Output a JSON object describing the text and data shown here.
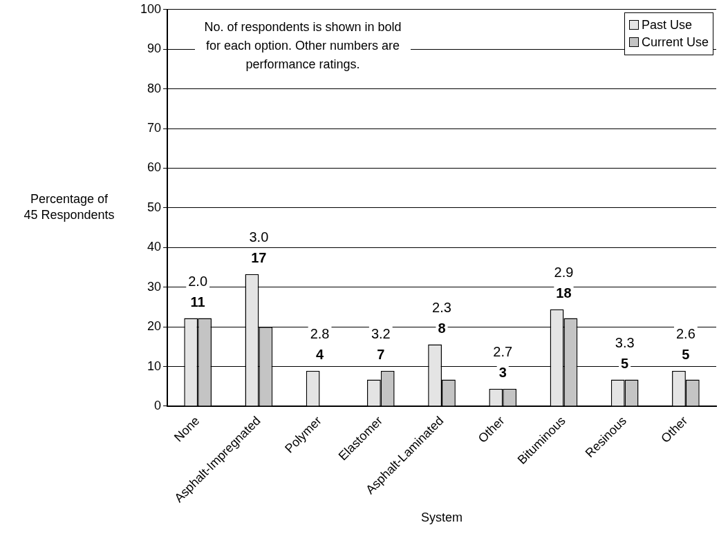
{
  "chart_data": {
    "type": "bar",
    "xlabel": "System",
    "ylabel": "Percentage of\n45 Respondents",
    "categories": [
      "None",
      "Asphalt-Impregnated",
      "Polymer",
      "Elastomer",
      "Asphalt-Laminated",
      "Other",
      "Bituminous",
      "Resinous",
      "Other"
    ],
    "series": [
      {
        "name": "Past Use",
        "color": "#e4e4e4",
        "values": [
          22.2,
          33.3,
          8.9,
          6.7,
          15.6,
          4.4,
          24.4,
          6.7,
          8.9
        ]
      },
      {
        "name": "Current Use",
        "color": "#c4c4c4",
        "values": [
          22.2,
          20,
          null,
          8.9,
          6.7,
          4.4,
          22.2,
          6.7,
          6.7
        ]
      }
    ],
    "ylim": [
      0,
      100
    ],
    "yticks": [
      0,
      10,
      20,
      30,
      40,
      50,
      60,
      70,
      80,
      90,
      100
    ],
    "grid": "y",
    "legend": "top right",
    "annotations": [
      "No. of respondents is shown in bold for each option. Other numbers are performance ratings.",
      "2.0",
      "11",
      "3.0",
      "17",
      "2.8",
      "4",
      "3.2",
      "7",
      "2.3",
      "8",
      "2.7",
      "3",
      "2.9",
      "18",
      "3.3",
      "5",
      "2.6",
      "5"
    ]
  }
}
